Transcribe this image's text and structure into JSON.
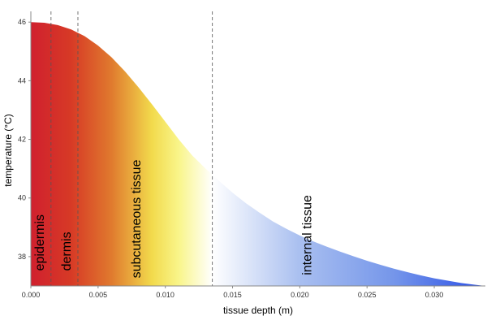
{
  "chart_data": {
    "type": "area",
    "title": "",
    "xlabel": "tissue depth (m)",
    "ylabel": "temperature (°C)",
    "xlim": [
      0,
      0.0338
    ],
    "ylim": [
      37,
      46.2
    ],
    "x_ticks": [
      {
        "value": 0.0,
        "label": "0.000"
      },
      {
        "value": 0.005,
        "label": "0.005"
      },
      {
        "value": 0.01,
        "label": "0.010"
      },
      {
        "value": 0.015,
        "label": "0.015"
      },
      {
        "value": 0.02,
        "label": "0.020"
      },
      {
        "value": 0.025,
        "label": "0.025"
      },
      {
        "value": 0.03,
        "label": "0.030"
      }
    ],
    "y_ticks": [
      {
        "value": 38,
        "label": "38"
      },
      {
        "value": 40,
        "label": "40"
      },
      {
        "value": 42,
        "label": "42"
      },
      {
        "value": 44,
        "label": "44"
      },
      {
        "value": 46,
        "label": "46"
      }
    ],
    "series": [
      {
        "name": "temperature",
        "x": [
          0.0,
          0.001,
          0.002,
          0.003,
          0.004,
          0.005,
          0.006,
          0.007,
          0.008,
          0.009,
          0.01,
          0.011,
          0.012,
          0.013,
          0.0135,
          0.014,
          0.015,
          0.016,
          0.017,
          0.018,
          0.019,
          0.02,
          0.021,
          0.022,
          0.023,
          0.024,
          0.025,
          0.026,
          0.027,
          0.028,
          0.029,
          0.03,
          0.031,
          0.032,
          0.033,
          0.0338
        ],
        "values": [
          46.0,
          45.98,
          45.9,
          45.75,
          45.52,
          45.2,
          44.8,
          44.32,
          43.78,
          43.2,
          42.6,
          42.0,
          41.45,
          41.0,
          40.8,
          40.58,
          40.18,
          39.82,
          39.5,
          39.2,
          38.95,
          38.72,
          38.52,
          38.34,
          38.17,
          38.01,
          37.86,
          37.72,
          37.59,
          37.47,
          37.36,
          37.26,
          37.18,
          37.1,
          37.04,
          37.0
        ]
      }
    ],
    "layer_boundaries": [
      0.0015,
      0.0035,
      0.0135
    ],
    "regions": [
      {
        "label": "epidermis",
        "x": 0.0006,
        "y": 37.35
      },
      {
        "label": "dermis",
        "x": 0.0026,
        "y": 37.35
      },
      {
        "label": "subcutaneous tissue",
        "x": 0.0078,
        "y": 37.1
      },
      {
        "label": "internal tissue",
        "x": 0.0205,
        "y": 37.2
      }
    ],
    "gradient": [
      {
        "x": 0.0,
        "color": "#d0202e"
      },
      {
        "x": 0.003,
        "color": "#d73a26"
      },
      {
        "x": 0.006,
        "color": "#e07a2e"
      },
      {
        "x": 0.009,
        "color": "#f2da4c"
      },
      {
        "x": 0.011,
        "color": "#f9f58a"
      },
      {
        "x": 0.0135,
        "color": "#ffffff"
      },
      {
        "x": 0.02,
        "color": "#a9bff0"
      },
      {
        "x": 0.027,
        "color": "#7596ea"
      },
      {
        "x": 0.0338,
        "color": "#2a4fe6"
      }
    ]
  }
}
